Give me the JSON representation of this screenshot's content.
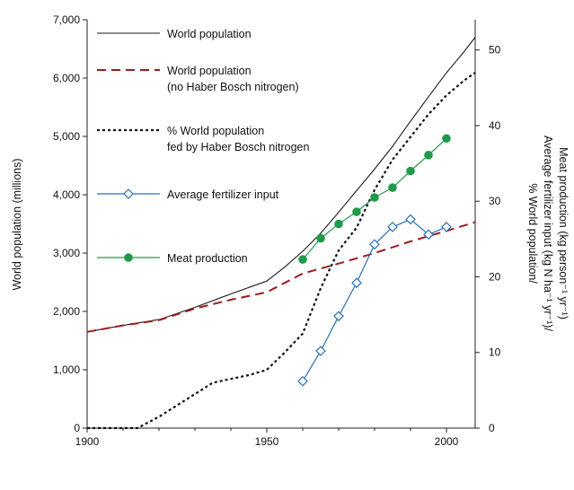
{
  "chart_data": {
    "type": "line",
    "title": "",
    "xlabel": "",
    "ylabel_left": "World population (millions)",
    "ylabel_right": [
      "% World population/",
      "Average fertilizer input (kg N ha⁻¹ yr⁻¹)/",
      "Meat production (kg person⁻¹ yr⁻¹)"
    ],
    "xlim": [
      1900,
      2008
    ],
    "ylim_left": [
      0,
      7000
    ],
    "ylim_right": [
      0,
      54
    ],
    "x_ticks": [
      1900,
      1950,
      2000
    ],
    "x_tick_labels": [
      "1900",
      "1950",
      "2000"
    ],
    "y_left_ticks": [
      0,
      1000,
      2000,
      3000,
      4000,
      5000,
      6000,
      7000
    ],
    "y_left_tick_labels": [
      "0",
      "1,000",
      "2,000",
      "3,000",
      "4,000",
      "5,000",
      "6,000",
      "7,000"
    ],
    "y_right_ticks": [
      0,
      10,
      20,
      30,
      40,
      50
    ],
    "y_right_tick_labels": [
      "0",
      "10",
      "20",
      "30",
      "40",
      "50"
    ],
    "legend_position": "top-left",
    "series": [
      {
        "name": "World population",
        "legend_lines": [
          "World population"
        ],
        "axis": "left",
        "style": "solid",
        "color": "#1a1a1a",
        "marker": "none",
        "x": [
          1900,
          1910,
          1920,
          1930,
          1940,
          1950,
          1955,
          1960,
          1965,
          1970,
          1975,
          1980,
          1985,
          1990,
          1995,
          2000,
          2005,
          2008
        ],
        "values": [
          1650,
          1760,
          1860,
          2070,
          2300,
          2520,
          2760,
          3030,
          3340,
          3700,
          4070,
          4440,
          4830,
          5260,
          5680,
          6090,
          6460,
          6700
        ]
      },
      {
        "name": "World population (no Haber Bosch nitrogen)",
        "legend_lines": [
          "World population",
          "(no Haber Bosch nitrogen)"
        ],
        "axis": "left",
        "style": "dashed",
        "color": "#9b1c1c",
        "marker": "none",
        "x": [
          1900,
          1910,
          1920,
          1930,
          1940,
          1950,
          1960,
          1970,
          1980,
          1990,
          2000,
          2008
        ],
        "values": [
          1650,
          1760,
          1850,
          2050,
          2200,
          2330,
          2650,
          2820,
          3000,
          3200,
          3380,
          3530
        ]
      },
      {
        "name": "% World population fed by Haber Bosch nitrogen",
        "legend_lines": [
          "% World population",
          "fed by Haber Bosch nitrogen"
        ],
        "axis": "right",
        "style": "dotted",
        "color": "#111111",
        "marker": "none",
        "x": [
          1900,
          1910,
          1914,
          1918,
          1920,
          1925,
          1930,
          1935,
          1940,
          1945,
          1950,
          1955,
          1960,
          1965,
          1970,
          1975,
          1980,
          1985,
          1990,
          1995,
          2000,
          2005,
          2008
        ],
        "values": [
          0,
          0,
          0,
          1,
          1.5,
          3,
          4.5,
          6,
          6.5,
          7,
          7.7,
          10,
          12.5,
          18.5,
          23.5,
          26.5,
          31.5,
          35.5,
          38.5,
          41.5,
          44,
          46,
          47
        ]
      },
      {
        "name": "Average fertilizer input",
        "legend_lines": [
          "Average fertilizer input"
        ],
        "axis": "right",
        "style": "solid",
        "color": "#2b6fb5",
        "marker": "diamond-open",
        "x": [
          1960,
          1965,
          1970,
          1975,
          1980,
          1985,
          1990,
          1995,
          2000
        ],
        "values": [
          6.2,
          10.2,
          14.8,
          19.2,
          24.3,
          26.6,
          27.6,
          25.6,
          26.6
        ]
      },
      {
        "name": "Meat production",
        "legend_lines": [
          "Meat production"
        ],
        "axis": "right",
        "style": "solid",
        "color": "#1f9a4a",
        "marker": "circle-filled",
        "x": [
          1960,
          1965,
          1970,
          1975,
          1980,
          1985,
          1990,
          1995,
          2000
        ],
        "values": [
          22.3,
          25.1,
          27.0,
          28.6,
          30.5,
          31.8,
          34.0,
          36.1,
          38.3
        ]
      }
    ]
  }
}
